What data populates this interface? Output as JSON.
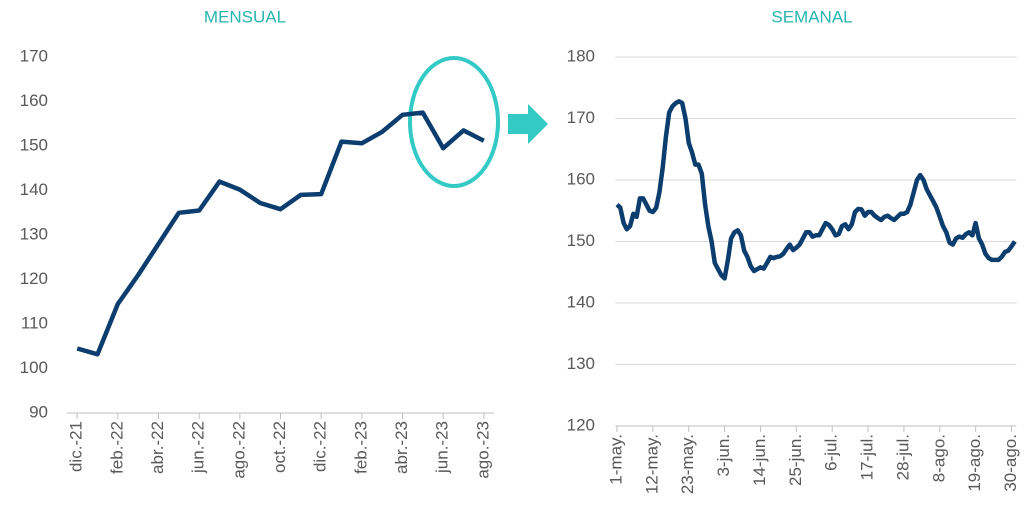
{
  "chart_data": [
    {
      "type": "line",
      "title": "MENSUAL",
      "color": "#0b3d6e",
      "grid": false,
      "categories": [
        "dic.-21",
        null,
        "feb.-22",
        null,
        "abr.-22",
        null,
        "jun.-22",
        null,
        "ago.-22",
        null,
        "oct.-22",
        null,
        "dic.-22",
        null,
        "feb.-23",
        null,
        "abr.-23",
        null,
        "jun.-23",
        null,
        "ago.-23"
      ],
      "values": [
        104.5,
        103.2,
        114.5,
        121,
        128,
        135,
        135.5,
        142,
        140.2,
        137.2,
        135.8,
        139,
        139.2,
        151,
        150.6,
        153.2,
        157,
        157.5,
        149.5,
        153.5,
        151.2
      ],
      "ylim": [
        90,
        170
      ],
      "yticks": [
        90,
        100,
        110,
        120,
        130,
        140,
        150,
        160,
        170
      ]
    },
    {
      "type": "line",
      "title": "SEMANAL",
      "color": "#0b3d6e",
      "grid": true,
      "categories": [
        "1-may.",
        null,
        null,
        null,
        null,
        null,
        null,
        null,
        null,
        null,
        null,
        "12-may.",
        null,
        null,
        null,
        null,
        null,
        null,
        null,
        null,
        null,
        null,
        "23-may.",
        null,
        null,
        null,
        null,
        null,
        null,
        null,
        null,
        null,
        null,
        "3-jun.",
        null,
        null,
        null,
        null,
        null,
        null,
        null,
        null,
        null,
        null,
        "14-jun.",
        null,
        null,
        null,
        null,
        null,
        null,
        null,
        null,
        null,
        null,
        "25-jun.",
        null,
        null,
        null,
        null,
        null,
        null,
        null,
        null,
        null,
        null,
        "6-jul.",
        null,
        null,
        null,
        null,
        null,
        null,
        null,
        null,
        null,
        null,
        "17-jul.",
        null,
        null,
        null,
        null,
        null,
        null,
        null,
        null,
        null,
        null,
        "28-jul.",
        null,
        null,
        null,
        null,
        null,
        null,
        null,
        null,
        null,
        null,
        "8-ago.",
        null,
        null,
        null,
        null,
        null,
        null,
        null,
        null,
        null,
        null,
        "19-ago.",
        null,
        null,
        null,
        null,
        null,
        null,
        null,
        null,
        null,
        null,
        "30-ago.",
        null
      ],
      "values": [
        156,
        155.5,
        153,
        152,
        152.5,
        154.5,
        154,
        157,
        157,
        156,
        155,
        154.8,
        155.5,
        158,
        162,
        167,
        171,
        172,
        172.5,
        172.8,
        172.5,
        170,
        166,
        164.5,
        162.5,
        162.5,
        161,
        156,
        152.5,
        150,
        146.5,
        145.5,
        144.5,
        144,
        147,
        150.5,
        151.5,
        151.8,
        151,
        148.5,
        147.5,
        146,
        145.2,
        145.5,
        145.8,
        145.6,
        146.5,
        147.5,
        147.3,
        147.5,
        147.6,
        148,
        148.8,
        149.5,
        148.6,
        149,
        149.5,
        150.5,
        151.5,
        151.5,
        150.8,
        151,
        151,
        152,
        153,
        152.7,
        152,
        151,
        151.2,
        152.5,
        152.8,
        152,
        152.8,
        154.8,
        155.3,
        155.2,
        154.2,
        154.8,
        154.8,
        154.2,
        153.8,
        153.5,
        154,
        154.2,
        153.8,
        153.5,
        154,
        154.5,
        154.5,
        154.8,
        156,
        158,
        160,
        160.8,
        160,
        158.5,
        157.5,
        156.5,
        155.5,
        154,
        152.5,
        151.5,
        149.8,
        149.5,
        150.5,
        150.8,
        150.6,
        151.2,
        151.5,
        151,
        153,
        150.5,
        149.5,
        148,
        147.3,
        147,
        147,
        147,
        147.5,
        148.3,
        148.5,
        149.2,
        150
      ],
      "ylim": [
        120,
        180
      ],
      "yticks": [
        120,
        130,
        140,
        150,
        160,
        170,
        180
      ]
    }
  ]
}
